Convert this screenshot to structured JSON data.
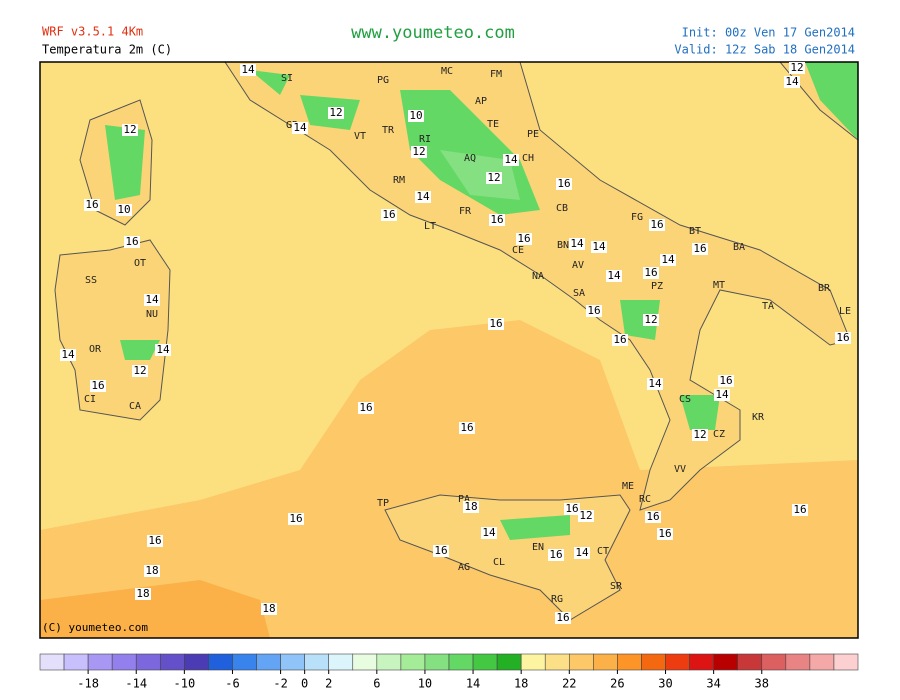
{
  "header": {
    "model": "WRF v3.5.1 4Km",
    "variable": "Temperatura 2m (C)",
    "site": "www.youmeteo.com",
    "init": "Init: 00z Ven  17 Gen2014",
    "valid": "Valid: 12z Sab  18 Gen2014"
  },
  "map": {
    "copyright": "(C) youmeteo.com",
    "provinces": [
      "SI",
      "PG",
      "MC",
      "FM",
      "AP",
      "GR",
      "TR",
      "TE",
      "PE",
      "RI",
      "AQ",
      "CH",
      "VT",
      "RM",
      "FR",
      "CB",
      "FG",
      "BT",
      "BA",
      "LT",
      "CE",
      "BN",
      "AV",
      "NA",
      "SA",
      "PZ",
      "MT",
      "BR",
      "TA",
      "LE",
      "CS",
      "KR",
      "CZ",
      "VV",
      "RC",
      "ME",
      "TP",
      "PA",
      "AG",
      "CL",
      "EN",
      "CT",
      "SR",
      "RG",
      "SS",
      "OT",
      "NU",
      "OR",
      "CA",
      "CI"
    ],
    "contour_labels": [
      14,
      14,
      12,
      10,
      12,
      14,
      12,
      16,
      14,
      16,
      16,
      16,
      14,
      14,
      16,
      16,
      14,
      16,
      14,
      16,
      16,
      12,
      16,
      16,
      14,
      16,
      14,
      12,
      16,
      16,
      16,
      18,
      16,
      12,
      14,
      16,
      16,
      14,
      16,
      16,
      16,
      18,
      18,
      18,
      16,
      12,
      10,
      16,
      14,
      14,
      12,
      16,
      14,
      16,
      12,
      14,
      16
    ]
  },
  "colorbar": {
    "min": -22,
    "max": 46,
    "colors": [
      "#e4e0fc",
      "#c8c0fc",
      "#a898f4",
      "#9480ec",
      "#7c68dc",
      "#6450c8",
      "#4c3cb4",
      "#2060dc",
      "#3884ec",
      "#64a4f4",
      "#90c4f8",
      "#b8e0f8",
      "#dcf4fc",
      "#e8fce0",
      "#c8f4c0",
      "#a4ec98",
      "#84e080",
      "#64d864",
      "#44c844",
      "#24b024",
      "#fcf4a0",
      "#fce088",
      "#fcc868",
      "#fcb048",
      "#fc9428",
      "#f46810",
      "#ec3c10",
      "#dc1414",
      "#b80000",
      "#c83838",
      "#dc6060",
      "#e88484",
      "#f4a8a8",
      "#fcd0d0"
    ],
    "ticks": [
      -18,
      -14,
      -10,
      -6,
      -2,
      0,
      2,
      6,
      10,
      14,
      18,
      22,
      26,
      30,
      34,
      38
    ]
  }
}
